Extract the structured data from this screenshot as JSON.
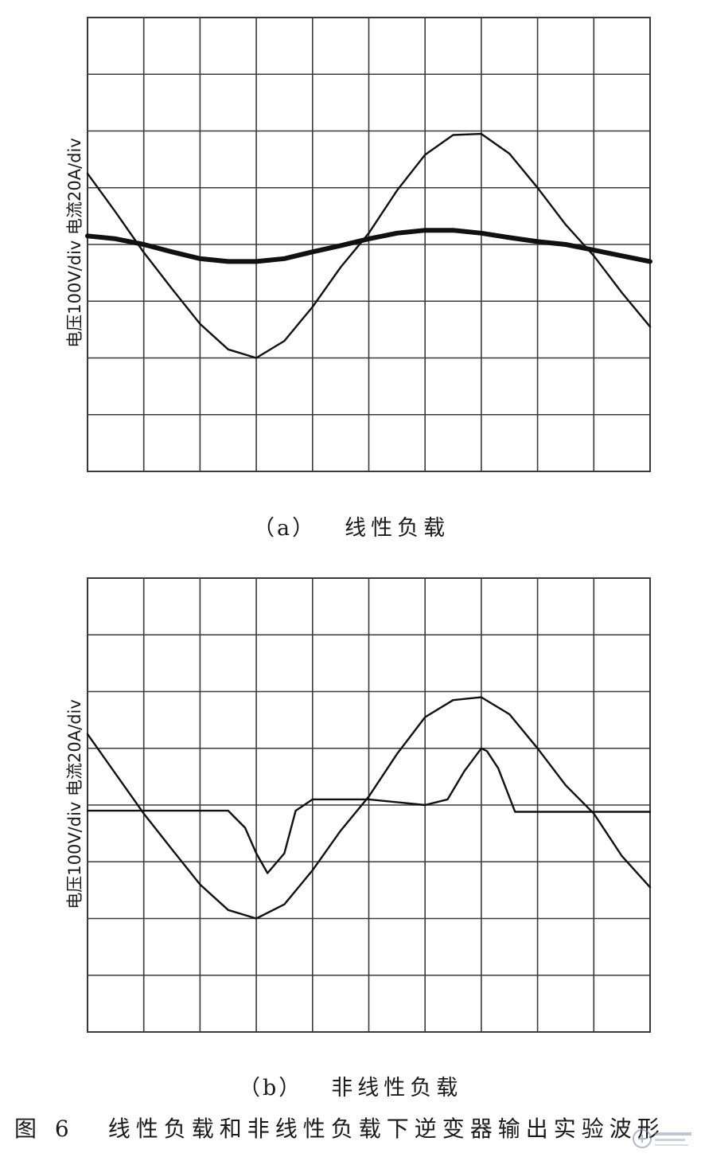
{
  "figure_caption": {
    "number": "图 6",
    "text": "线性负载和非线性负载下逆变器输出实验波形"
  },
  "colors": {
    "grid": "#3a3a3a",
    "trace": "#111111",
    "background": "#ffffff"
  },
  "chart_data": [
    {
      "type": "line",
      "panel": "a",
      "caption_tag": "（a）",
      "caption": "线性负载",
      "ylabel": "电压100V/div  电流20A/div",
      "grid": true,
      "divisions": {
        "x": 10,
        "y": 8
      },
      "xlim": [
        0,
        10
      ],
      "ylim": [
        -4,
        4
      ],
      "series": [
        {
          "role": "voltage",
          "x": [
            0,
            0.5,
            1,
            1.5,
            2,
            2.5,
            3,
            3.5,
            4,
            4.5,
            5,
            5.5,
            6,
            6.5,
            7,
            7.5,
            8,
            8.5,
            9,
            9.5,
            10
          ],
          "y": [
            1.25,
            0.57,
            -0.14,
            -0.78,
            -1.4,
            -1.85,
            -2.0,
            -1.7,
            -1.1,
            -0.4,
            0.2,
            0.95,
            1.58,
            1.93,
            1.95,
            1.6,
            1.0,
            0.35,
            -0.2,
            -0.85,
            -1.45
          ]
        },
        {
          "role": "current",
          "x": [
            0,
            0.5,
            1,
            1.5,
            2,
            2.5,
            3,
            3.5,
            4,
            4.5,
            5,
            5.5,
            6,
            6.5,
            7,
            7.5,
            8,
            8.5,
            9,
            9.5,
            10
          ],
          "y": [
            0.15,
            0.1,
            0.0,
            -0.13,
            -0.25,
            -0.3,
            -0.3,
            -0.25,
            -0.13,
            -0.02,
            0.1,
            0.2,
            0.25,
            0.25,
            0.2,
            0.12,
            0.05,
            0.0,
            -0.1,
            -0.2,
            -0.3
          ]
        }
      ]
    },
    {
      "type": "line",
      "panel": "b",
      "caption_tag": "（b）",
      "caption": "非线性负载",
      "ylabel": "电压100V/div  电流20A/div",
      "grid": true,
      "divisions": {
        "x": 10,
        "y": 8
      },
      "xlim": [
        0,
        10
      ],
      "ylim": [
        -4,
        4
      ],
      "series": [
        {
          "role": "voltage",
          "x": [
            0,
            0.5,
            1,
            1.5,
            2,
            2.5,
            3,
            3.5,
            4,
            4.5,
            5,
            5.5,
            6,
            6.5,
            7,
            7.5,
            8,
            8.5,
            9,
            9.5,
            10
          ],
          "y": [
            1.25,
            0.55,
            -0.15,
            -0.78,
            -1.4,
            -1.85,
            -2.0,
            -1.75,
            -1.15,
            -0.45,
            0.15,
            0.9,
            1.55,
            1.85,
            1.9,
            1.6,
            1.0,
            0.35,
            -0.15,
            -0.9,
            -1.45
          ]
        },
        {
          "role": "current",
          "x": [
            0,
            1,
            2,
            2.5,
            2.8,
            3.0,
            3.2,
            3.5,
            3.7,
            4,
            5,
            6,
            6.4,
            6.7,
            7.0,
            7.1,
            7.3,
            7.6,
            8,
            9,
            10
          ],
          "y": [
            -0.1,
            -0.1,
            -0.1,
            -0.1,
            -0.4,
            -0.85,
            -1.2,
            -0.85,
            -0.1,
            0.1,
            0.1,
            0.0,
            0.1,
            0.6,
            1.0,
            0.95,
            0.65,
            -0.12,
            -0.12,
            -0.12,
            -0.12
          ]
        }
      ]
    }
  ]
}
